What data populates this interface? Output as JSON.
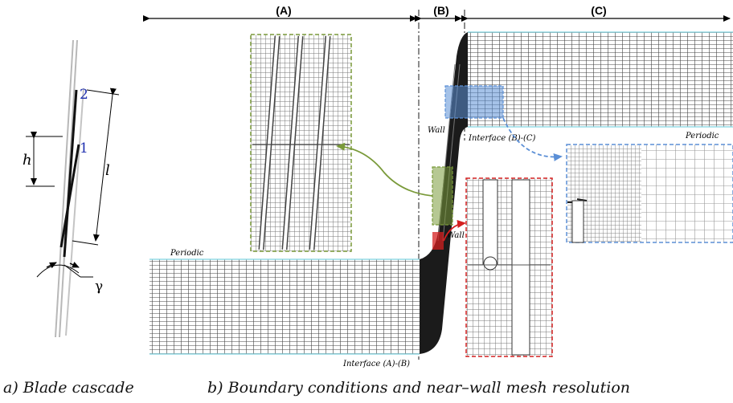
{
  "panel_a": {
    "label_2": "2",
    "label_1": "1",
    "label_h": "h",
    "label_l": "l",
    "label_gamma": "γ",
    "caption": "a) Blade cascade"
  },
  "panel_b": {
    "region_a": "(A)",
    "region_b": "(B)",
    "region_c": "(C)",
    "periodic_top": "Periodic",
    "periodic_bottom": "Periodic",
    "wall_upper": "Wall",
    "wall_lower": "Wall",
    "interface_ab": "Interface (A)-(B)",
    "interface_bc": "Interface (B)-(C)",
    "caption": "b) Boundary conditions and near–wall mesh resolution"
  },
  "colors": {
    "green": "#7a9a3a",
    "blue": "#5b8fd6",
    "red": "#d42020",
    "mesh": "#3a3a3a",
    "periodic_line": "#7fd3e0",
    "number_blue": "#2030b0"
  }
}
